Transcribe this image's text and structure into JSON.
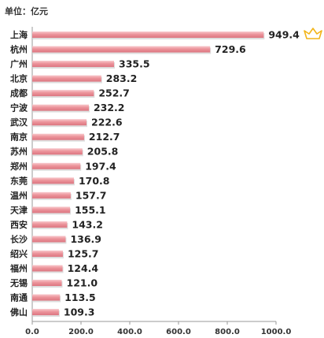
{
  "unit_label": "单位：亿元",
  "crown_icon": "crown-icon",
  "colors": {
    "bar": "#e98b93",
    "bar_highlight": "#f8c9cd",
    "bar_shadow": "#c8c8c8",
    "axis": "#9a9a9a",
    "crown": "#f2b418"
  },
  "chart_data": {
    "type": "bar",
    "orientation": "horizontal",
    "title": "",
    "xlabel": "",
    "ylabel": "",
    "categories": [
      "上海",
      "杭州",
      "广州",
      "北京",
      "成都",
      "宁波",
      "武汉",
      "南京",
      "苏州",
      "郑州",
      "东莞",
      "温州",
      "天津",
      "西安",
      "长沙",
      "绍兴",
      "福州",
      "无锡",
      "南通",
      "佛山"
    ],
    "values": [
      949.4,
      729.6,
      335.5,
      283.2,
      252.7,
      232.2,
      222.6,
      212.7,
      205.8,
      197.4,
      170.8,
      157.7,
      155.1,
      143.2,
      136.9,
      125.7,
      124.4,
      121.0,
      113.5,
      109.3
    ],
    "value_labels": [
      "949.4",
      "729.6",
      "335.5",
      "283.2",
      "252.7",
      "232.2",
      "222.6",
      "212.7",
      "205.8",
      "197.4",
      "170.8",
      "157.7",
      "155.1",
      "143.2",
      "136.9",
      "125.7",
      "124.4",
      "121.0",
      "113.5",
      "109.3"
    ],
    "xlim": [
      0,
      1000
    ],
    "ticks": [
      0,
      200,
      400,
      600,
      800,
      1000
    ],
    "tick_labels": [
      "0.0",
      "200.0",
      "400.0",
      "600.0",
      "800.0",
      "1000.0"
    ],
    "grid": false,
    "legend": "none"
  }
}
